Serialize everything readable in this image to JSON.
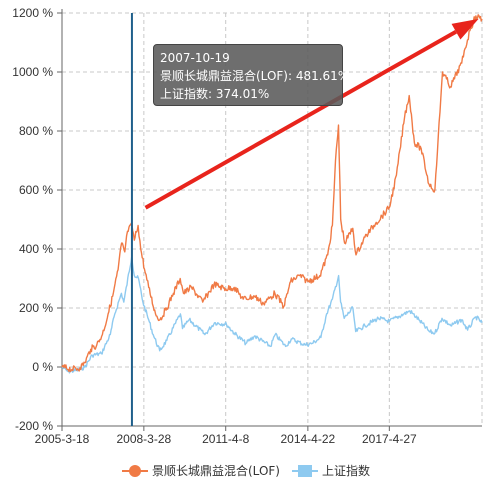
{
  "chart_data": {
    "type": "line",
    "ylim": [
      -200,
      1200
    ],
    "yticks": [
      -200,
      0,
      200,
      400,
      600,
      800,
      1000,
      1200
    ],
    "ytick_format": "{v} %",
    "x_start": "2005-03-18",
    "x_end": "2020-09-30",
    "xticks": [
      "2005-3-18",
      "2008-3-28",
      "2011-4-8",
      "2014-4-22",
      "2017-4-27"
    ],
    "grid": true,
    "legend_position": "bottom",
    "series": [
      {
        "name": "景顺长城鼎益混合(LOF)",
        "color": "#f07a45",
        "points": [
          [
            "2005-03-18",
            0
          ],
          [
            "2005-08-01",
            -8
          ],
          [
            "2005-11-15",
            -3
          ],
          [
            "2006-01-20",
            15
          ],
          [
            "2006-04-10",
            60
          ],
          [
            "2006-07-01",
            75
          ],
          [
            "2006-09-15",
            110
          ],
          [
            "2006-12-01",
            180
          ],
          [
            "2007-02-01",
            240
          ],
          [
            "2007-04-15",
            330
          ],
          [
            "2007-06-01",
            420
          ],
          [
            "2007-07-15",
            390
          ],
          [
            "2007-08-20",
            460
          ],
          [
            "2007-10-19",
            481.61
          ],
          [
            "2007-11-20",
            430
          ],
          [
            "2008-01-10",
            480
          ],
          [
            "2008-02-15",
            400
          ],
          [
            "2008-04-15",
            320
          ],
          [
            "2008-06-01",
            270
          ],
          [
            "2008-09-01",
            180
          ],
          [
            "2008-11-01",
            160
          ],
          [
            "2009-02-01",
            200
          ],
          [
            "2009-05-01",
            250
          ],
          [
            "2009-08-01",
            300
          ],
          [
            "2009-09-15",
            250
          ],
          [
            "2010-01-01",
            270
          ],
          [
            "2010-06-01",
            220
          ],
          [
            "2010-11-01",
            280
          ],
          [
            "2011-04-08",
            265
          ],
          [
            "2011-08-01",
            270
          ],
          [
            "2011-12-01",
            230
          ],
          [
            "2012-05-01",
            240
          ],
          [
            "2012-09-01",
            215
          ],
          [
            "2013-02-01",
            250
          ],
          [
            "2013-06-01",
            205
          ],
          [
            "2013-09-01",
            290
          ],
          [
            "2014-01-01",
            310
          ],
          [
            "2014-04-22",
            290
          ],
          [
            "2014-10-01",
            310
          ],
          [
            "2015-01-15",
            380
          ],
          [
            "2015-03-20",
            480
          ],
          [
            "2015-05-01",
            700
          ],
          [
            "2015-06-10",
            820
          ],
          [
            "2015-07-10",
            500
          ],
          [
            "2015-09-01",
            420
          ],
          [
            "2015-12-20",
            470
          ],
          [
            "2016-02-01",
            380
          ],
          [
            "2016-06-01",
            440
          ],
          [
            "2016-11-01",
            490
          ],
          [
            "2017-04-27",
            540
          ],
          [
            "2017-08-01",
            650
          ],
          [
            "2017-11-20",
            850
          ],
          [
            "2018-01-20",
            920
          ],
          [
            "2018-04-01",
            760
          ],
          [
            "2018-07-01",
            740
          ],
          [
            "2018-10-15",
            620
          ],
          [
            "2019-01-03",
            600
          ],
          [
            "2019-04-15",
            1000
          ],
          [
            "2019-08-01",
            950
          ],
          [
            "2019-12-31",
            1030
          ],
          [
            "2020-02-15",
            1080
          ],
          [
            "2020-05-01",
            1150
          ],
          [
            "2020-07-10",
            1190
          ],
          [
            "2020-09-30",
            1180
          ]
        ]
      },
      {
        "name": "上证指数",
        "color": "#8ecaf0",
        "points": [
          [
            "2005-03-18",
            0
          ],
          [
            "2005-06-05",
            -15
          ],
          [
            "2005-10-01",
            -12
          ],
          [
            "2006-01-20",
            0
          ],
          [
            "2006-05-01",
            40
          ],
          [
            "2006-09-01",
            45
          ],
          [
            "2006-12-31",
            110
          ],
          [
            "2007-03-01",
            180
          ],
          [
            "2007-05-30",
            250
          ],
          [
            "2007-07-01",
            220
          ],
          [
            "2007-10-16",
            374.01
          ],
          [
            "2007-11-20",
            310
          ],
          [
            "2008-01-15",
            300
          ],
          [
            "2008-03-15",
            220
          ],
          [
            "2008-06-01",
            160
          ],
          [
            "2008-08-01",
            110
          ],
          [
            "2008-10-28",
            55
          ],
          [
            "2009-02-01",
            90
          ],
          [
            "2009-08-04",
            180
          ],
          [
            "2009-09-01",
            130
          ],
          [
            "2009-12-01",
            160
          ],
          [
            "2010-07-01",
            110
          ],
          [
            "2010-11-08",
            150
          ],
          [
            "2011-04-18",
            145
          ],
          [
            "2011-08-01",
            115
          ],
          [
            "2012-01-06",
            80
          ],
          [
            "2012-05-01",
            105
          ],
          [
            "2012-12-03",
            70
          ],
          [
            "2013-02-05",
            110
          ],
          [
            "2013-06-25",
            70
          ],
          [
            "2013-09-10",
            95
          ],
          [
            "2014-03-15",
            75
          ],
          [
            "2014-06-20",
            80
          ],
          [
            "2014-10-15",
            100
          ],
          [
            "2014-12-31",
            180
          ],
          [
            "2015-03-20",
            230
          ],
          [
            "2015-06-12",
            310
          ],
          [
            "2015-07-08",
            220
          ],
          [
            "2015-08-26",
            165
          ],
          [
            "2015-12-22",
            200
          ],
          [
            "2016-01-28",
            120
          ],
          [
            "2016-06-01",
            140
          ],
          [
            "2016-11-30",
            165
          ],
          [
            "2017-04-27",
            155
          ],
          [
            "2017-11-13",
            180
          ],
          [
            "2018-01-29",
            190
          ],
          [
            "2018-06-01",
            160
          ],
          [
            "2018-10-19",
            120
          ],
          [
            "2019-01-03",
            115
          ],
          [
            "2019-04-08",
            165
          ],
          [
            "2019-08-06",
            140
          ],
          [
            "2019-12-31",
            160
          ],
          [
            "2020-03-19",
            125
          ],
          [
            "2020-07-09",
            170
          ],
          [
            "2020-09-30",
            150
          ]
        ]
      }
    ],
    "annotations": {
      "crosshair_date": "2007-10-19",
      "arrow": {
        "from": [
          "2008-04-20",
          540
        ],
        "to": [
          "2020-08-15",
          1180
        ],
        "color": "#e8241c"
      }
    }
  },
  "tooltip": {
    "date": "2007-10-19",
    "line1": "景顺长城鼎益混合(LOF): 481.61%",
    "line2": "上证指数: 374.01%"
  }
}
